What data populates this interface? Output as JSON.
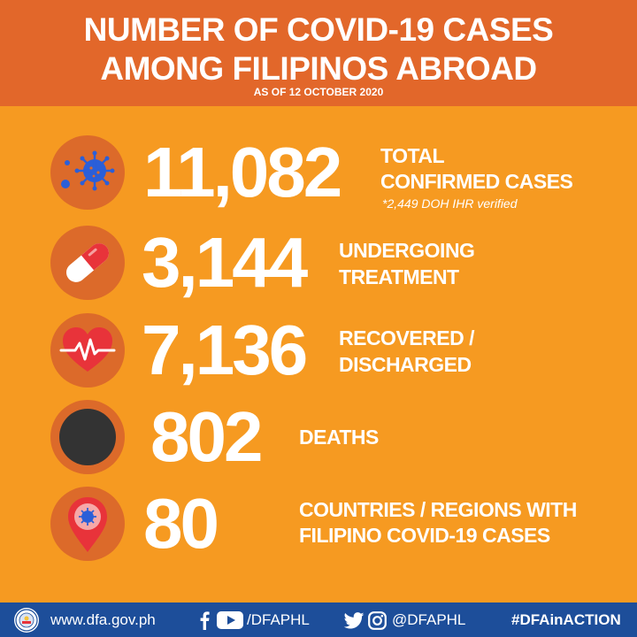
{
  "header": {
    "title_line1": "NUMBER OF COVID-19 CASES",
    "title_line2": "AMONG FILIPINOS ABROAD",
    "as_of": "AS OF 12 OCTOBER 2020"
  },
  "stats": [
    {
      "icon": "virus-icon",
      "value": "11,082",
      "label_line1": "TOTAL",
      "label_line2": "CONFIRMED CASES",
      "note": "*2,449 DOH IHR verified"
    },
    {
      "icon": "pill-capsule-icon",
      "value": "3,144",
      "label_line1": "UNDERGOING",
      "label_line2": "TREATMENT"
    },
    {
      "icon": "heartbeat-icon",
      "value": "7,136",
      "label_line1": "RECOVERED /",
      "label_line2": "DISCHARGED"
    },
    {
      "icon": "death-circle-icon",
      "value": "802",
      "label_line1": "DEATHS"
    },
    {
      "icon": "location-pin-virus-icon",
      "value": "80",
      "label_line1": "COUNTRIES / REGIONS WITH",
      "label_line2": "FILIPINO COVID-19 CASES"
    }
  ],
  "footer": {
    "website": "www.dfa.gov.ph",
    "facebook_youtube_handle": "/DFAPHL",
    "twitter_instagram_handle": "@DFAPHL",
    "hashtag": "#DFAinACTION"
  },
  "colors": {
    "background": "#f69a21",
    "header": "#e2672a",
    "icon_circle": "#dc6a2a",
    "footer": "#1d4e9a",
    "virus_blue": "#2b5fd8",
    "heart_red": "#e8333a",
    "death_dark": "#333333"
  }
}
